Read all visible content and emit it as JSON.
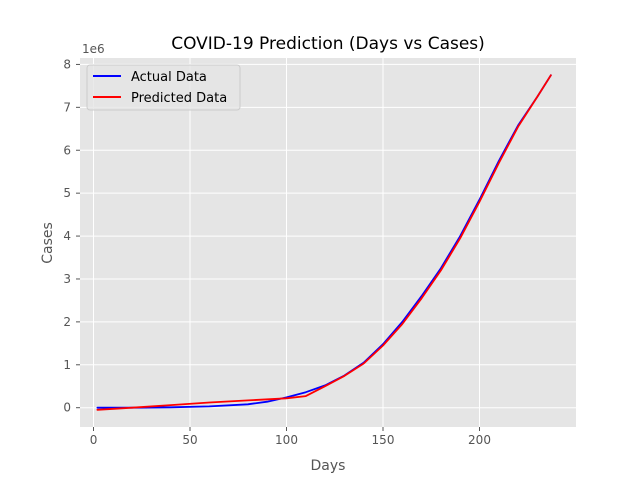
{
  "chart_data": {
    "type": "line",
    "title": "COVID-19 Prediction (Days vs Cases)",
    "xlabel": "Days",
    "ylabel": "Cases",
    "y_offset_label": "1e6",
    "xlim": [
      -7,
      250
    ],
    "ylim": [
      -0.45,
      8.15
    ],
    "x_ticks": [
      0,
      50,
      100,
      150,
      200
    ],
    "y_ticks": [
      0,
      1,
      2,
      3,
      4,
      5,
      6,
      7,
      8
    ],
    "grid": true,
    "legend_position": "upper-left",
    "series": [
      {
        "name": "Actual Data",
        "color": "#0000ff",
        "x": [
          2,
          20,
          40,
          60,
          80,
          90,
          100,
          110,
          120,
          130,
          140,
          150,
          160,
          170,
          180,
          190,
          200,
          210,
          220,
          230,
          237
        ],
        "y": [
          0.0,
          0.0,
          0.01,
          0.03,
          0.08,
          0.14,
          0.24,
          0.36,
          0.52,
          0.75,
          1.05,
          1.48,
          2.0,
          2.6,
          3.25,
          4.0,
          4.85,
          5.75,
          6.58,
          7.25,
          7.75
        ]
      },
      {
        "name": "Predicted Data",
        "color": "#ff0000",
        "x": [
          2,
          20,
          40,
          60,
          80,
          100,
          110,
          120,
          130,
          140,
          150,
          160,
          170,
          180,
          190,
          200,
          210,
          220,
          230,
          237
        ],
        "y": [
          -0.05,
          0.0,
          0.06,
          0.12,
          0.17,
          0.22,
          0.27,
          0.5,
          0.74,
          1.03,
          1.45,
          1.95,
          2.55,
          3.2,
          3.95,
          4.8,
          5.7,
          6.55,
          7.25,
          7.75
        ]
      }
    ]
  }
}
